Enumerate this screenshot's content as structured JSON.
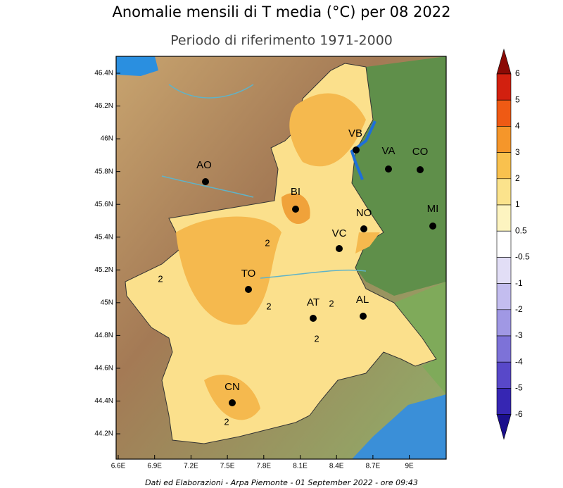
{
  "header": {
    "title": "Anomalie mensili di T media (°C) per 08 2022",
    "subtitle": "Periodo di riferimento 1971-2000"
  },
  "map": {
    "lon_ticks": [
      "6.6E",
      "6.9E",
      "7.2E",
      "7.5E",
      "7.8E",
      "8.1E",
      "8.4E",
      "8.7E",
      "9E"
    ],
    "lat_ticks": [
      "46.4N",
      "46.2N",
      "46N",
      "45.8N",
      "45.6N",
      "45.4N",
      "45.2N",
      "45N",
      "44.8N",
      "44.6N",
      "44.4N",
      "44.2N"
    ],
    "cities": [
      "AO",
      "VB",
      "VA",
      "CO",
      "BI",
      "NO",
      "MI",
      "VC",
      "TO",
      "AT",
      "AL",
      "CN"
    ],
    "contour_labels": [
      "2",
      "2",
      "2",
      "2",
      "2",
      "2"
    ]
  },
  "colorbar": {
    "labels": [
      6,
      5,
      4,
      3,
      2,
      1,
      0.5,
      -0.5,
      -1,
      -2,
      -3,
      -4,
      -5,
      -6
    ],
    "colors": [
      "#8b0a05",
      "#d2200f",
      "#ef5a14",
      "#f5962a",
      "#f9c14e",
      "#fbe38c",
      "#fdf4c0",
      "#ffffff",
      "#e2def6",
      "#c3bdef",
      "#a098e4",
      "#7d72d8",
      "#5848c9",
      "#3626b3",
      "#1b0f8c"
    ]
  },
  "footer": "Dati ed Elaborazioni - Arpa Piemonte - 01 September 2022 - ore 09:43"
}
